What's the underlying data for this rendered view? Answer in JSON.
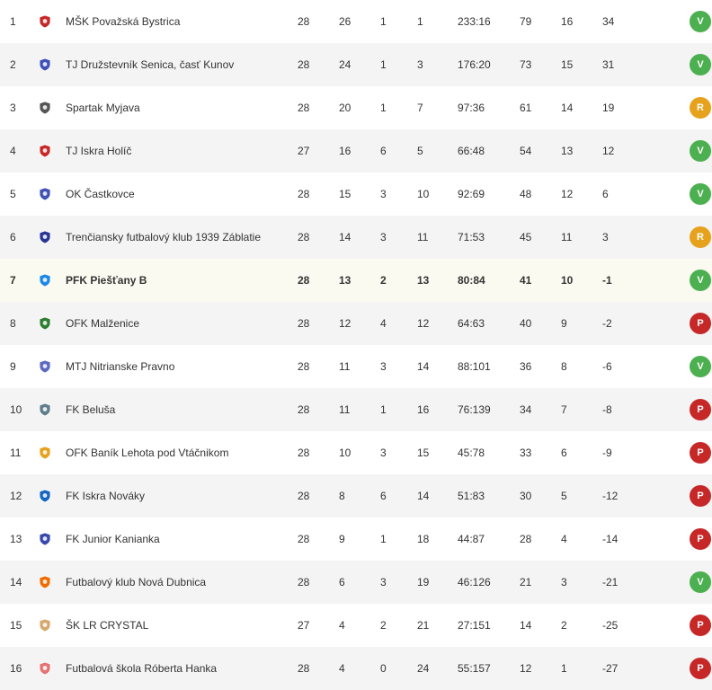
{
  "colors": {
    "V": "#4caf50",
    "R": "#e6a21c",
    "P": "#c62828",
    "highlight_row": "#fbfaf0",
    "zebra_row": "#f4f4f4"
  },
  "rows": [
    {
      "pos": "1",
      "team": "MŠK Považská Bystrica",
      "mp": "28",
      "w": "26",
      "d": "1",
      "l": "1",
      "score": "233:16",
      "pts": "79",
      "pct": "16",
      "diff": "34",
      "form": "V",
      "logo_icon": "club-crest-icon"
    },
    {
      "pos": "2",
      "team": "TJ Družstevník Senica, časť Kunov",
      "mp": "28",
      "w": "24",
      "d": "1",
      "l": "3",
      "score": "176:20",
      "pts": "73",
      "pct": "15",
      "diff": "31",
      "form": "V",
      "logo_icon": "club-crest-icon"
    },
    {
      "pos": "3",
      "team": "Spartak Myjava",
      "mp": "28",
      "w": "20",
      "d": "1",
      "l": "7",
      "score": "97:36",
      "pts": "61",
      "pct": "14",
      "diff": "19",
      "form": "R",
      "logo_icon": "club-crest-icon"
    },
    {
      "pos": "4",
      "team": "TJ Iskra Holíč",
      "mp": "27",
      "w": "16",
      "d": "6",
      "l": "5",
      "score": "66:48",
      "pts": "54",
      "pct": "13",
      "diff": "12",
      "form": "V",
      "logo_icon": "club-crest-icon"
    },
    {
      "pos": "5",
      "team": "OK Častkovce",
      "mp": "28",
      "w": "15",
      "d": "3",
      "l": "10",
      "score": "92:69",
      "pts": "48",
      "pct": "12",
      "diff": "6",
      "form": "V",
      "logo_icon": "club-crest-icon"
    },
    {
      "pos": "6",
      "team": "Trenčiansky futbalový klub 1939 Záblatie",
      "mp": "28",
      "w": "14",
      "d": "3",
      "l": "11",
      "score": "71:53",
      "pts": "45",
      "pct": "11",
      "diff": "3",
      "form": "R",
      "logo_icon": "club-crest-icon"
    },
    {
      "pos": "7",
      "team": "PFK Piešťany B",
      "mp": "28",
      "w": "13",
      "d": "2",
      "l": "13",
      "score": "80:84",
      "pts": "41",
      "pct": "10",
      "diff": "-1",
      "form": "V",
      "logo_icon": "club-crest-icon",
      "highlight": true
    },
    {
      "pos": "8",
      "team": "OFK Malženice",
      "mp": "28",
      "w": "12",
      "d": "4",
      "l": "12",
      "score": "64:63",
      "pts": "40",
      "pct": "9",
      "diff": "-2",
      "form": "P",
      "logo_icon": "club-crest-icon"
    },
    {
      "pos": "9",
      "team": "MTJ Nitrianske Pravno",
      "mp": "28",
      "w": "11",
      "d": "3",
      "l": "14",
      "score": "88:101",
      "pts": "36",
      "pct": "8",
      "diff": "-6",
      "form": "V",
      "logo_icon": "club-crest-icon"
    },
    {
      "pos": "10",
      "team": "FK Beluša",
      "mp": "28",
      "w": "11",
      "d": "1",
      "l": "16",
      "score": "76:139",
      "pts": "34",
      "pct": "7",
      "diff": "-8",
      "form": "P",
      "logo_icon": "club-crest-icon"
    },
    {
      "pos": "11",
      "team": "OFK Baník Lehota pod Vtáčnikom",
      "mp": "28",
      "w": "10",
      "d": "3",
      "l": "15",
      "score": "45:78",
      "pts": "33",
      "pct": "6",
      "diff": "-9",
      "form": "P",
      "logo_icon": "club-crest-icon"
    },
    {
      "pos": "12",
      "team": "FK Iskra Nováky",
      "mp": "28",
      "w": "8",
      "d": "6",
      "l": "14",
      "score": "51:83",
      "pts": "30",
      "pct": "5",
      "diff": "-12",
      "form": "P",
      "logo_icon": "club-crest-icon"
    },
    {
      "pos": "13",
      "team": "FK Junior Kanianka",
      "mp": "28",
      "w": "9",
      "d": "1",
      "l": "18",
      "score": "44:87",
      "pts": "28",
      "pct": "4",
      "diff": "-14",
      "form": "P",
      "logo_icon": "club-crest-icon"
    },
    {
      "pos": "14",
      "team": "Futbalový klub Nová Dubnica",
      "mp": "28",
      "w": "6",
      "d": "3",
      "l": "19",
      "score": "46:126",
      "pts": "21",
      "pct": "3",
      "diff": "-21",
      "form": "V",
      "logo_icon": "club-crest-icon"
    },
    {
      "pos": "15",
      "team": "ŠK LR CRYSTAL",
      "mp": "27",
      "w": "4",
      "d": "2",
      "l": "21",
      "score": "27:151",
      "pts": "14",
      "pct": "2",
      "diff": "-25",
      "form": "P",
      "logo_icon": "club-crest-icon"
    },
    {
      "pos": "16",
      "team": "Futbalová škola Róberta Hanka",
      "mp": "28",
      "w": "4",
      "d": "0",
      "l": "24",
      "score": "55:157",
      "pts": "12",
      "pct": "1",
      "diff": "-27",
      "form": "P",
      "logo_icon": "club-crest-icon"
    }
  ]
}
